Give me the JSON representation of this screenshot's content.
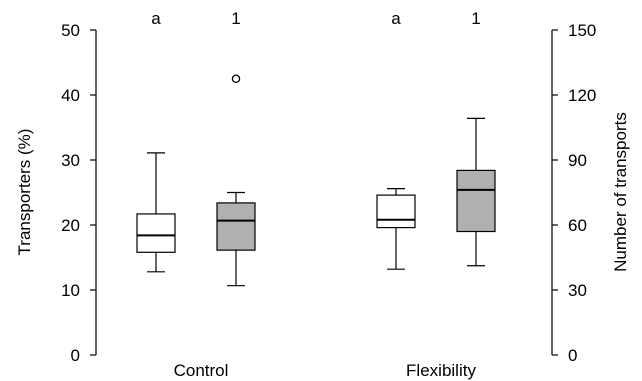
{
  "chart_data": {
    "type": "box",
    "categories": [
      "Control",
      "Flexibility"
    ],
    "left_axis": {
      "label": "Transporters (%)",
      "range": [
        0,
        50
      ],
      "ticks": [
        0,
        10,
        20,
        30,
        40,
        50
      ]
    },
    "right_axis": {
      "label": "Number of transports",
      "range": [
        0,
        150
      ],
      "ticks": [
        0,
        30,
        60,
        90,
        120,
        150
      ]
    },
    "series": [
      {
        "axis": "left",
        "fill": "#ffffff",
        "boxes": [
          {
            "category": "Control",
            "whisker_low": 12.8,
            "q1": 15.8,
            "median": 18.4,
            "q3": 21.7,
            "whisker_high": 31.1,
            "outliers": [],
            "significance": "a"
          },
          {
            "category": "Flexibility",
            "whisker_low": 13.2,
            "q1": 19.6,
            "median": 20.8,
            "q3": 24.6,
            "whisker_high": 25.6,
            "outliers": [],
            "significance": "a"
          }
        ]
      },
      {
        "axis": "right",
        "fill": "#b0b0b0",
        "boxes": [
          {
            "category": "Control",
            "whisker_low": 32,
            "q1": 48.4,
            "median": 62,
            "q3": 70.2,
            "whisker_high": 75,
            "outliers": [
              127.5
            ],
            "significance": "1"
          },
          {
            "category": "Flexibility",
            "whisker_low": 41.2,
            "q1": 57,
            "median": 76.2,
            "q3": 85.2,
            "whisker_high": 109.2,
            "outliers": [],
            "significance": "1"
          }
        ]
      }
    ],
    "grid": false,
    "legend": "none"
  }
}
